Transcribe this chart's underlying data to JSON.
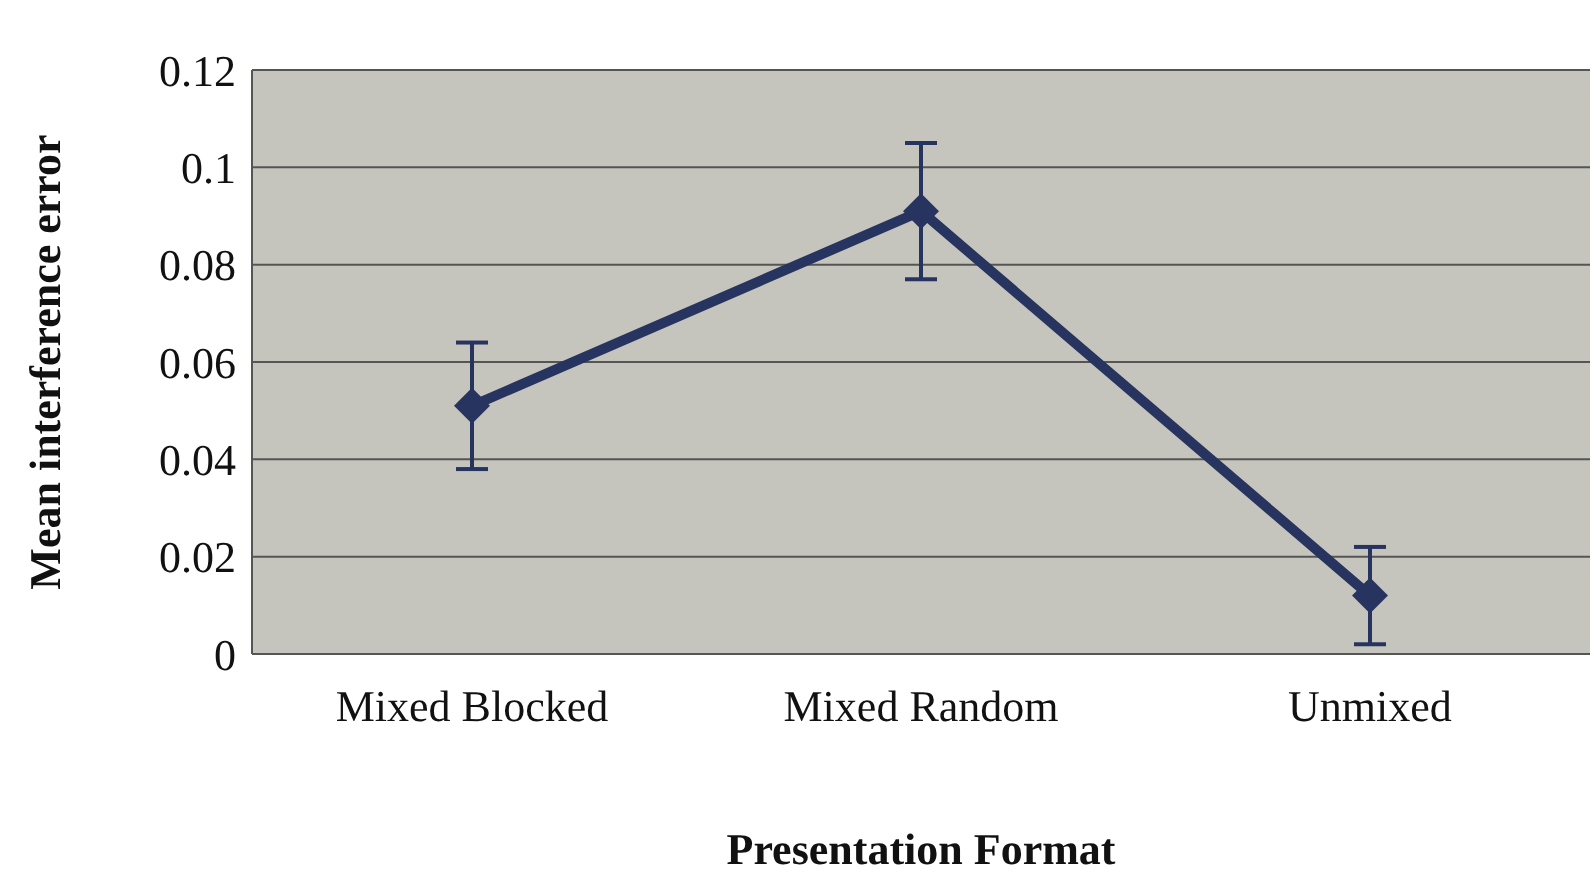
{
  "chart_data": {
    "type": "line",
    "xlabel": "Presentation Format",
    "ylabel": "Mean interference error",
    "categories": [
      "Mixed Blocked",
      "Mixed Random",
      "Unmixed"
    ],
    "series": [
      {
        "color": "#27345f",
        "values": [
          0.051,
          0.091,
          0.012
        ],
        "errors": [
          0.013,
          0.014,
          0.01
        ]
      }
    ],
    "ylim": [
      0,
      0.12
    ],
    "yticks": [
      0,
      0.02,
      0.04,
      0.06,
      0.08,
      0.1,
      0.12
    ],
    "grid": "y",
    "marker": "diamond",
    "line_style": "solid",
    "legend": false
  }
}
